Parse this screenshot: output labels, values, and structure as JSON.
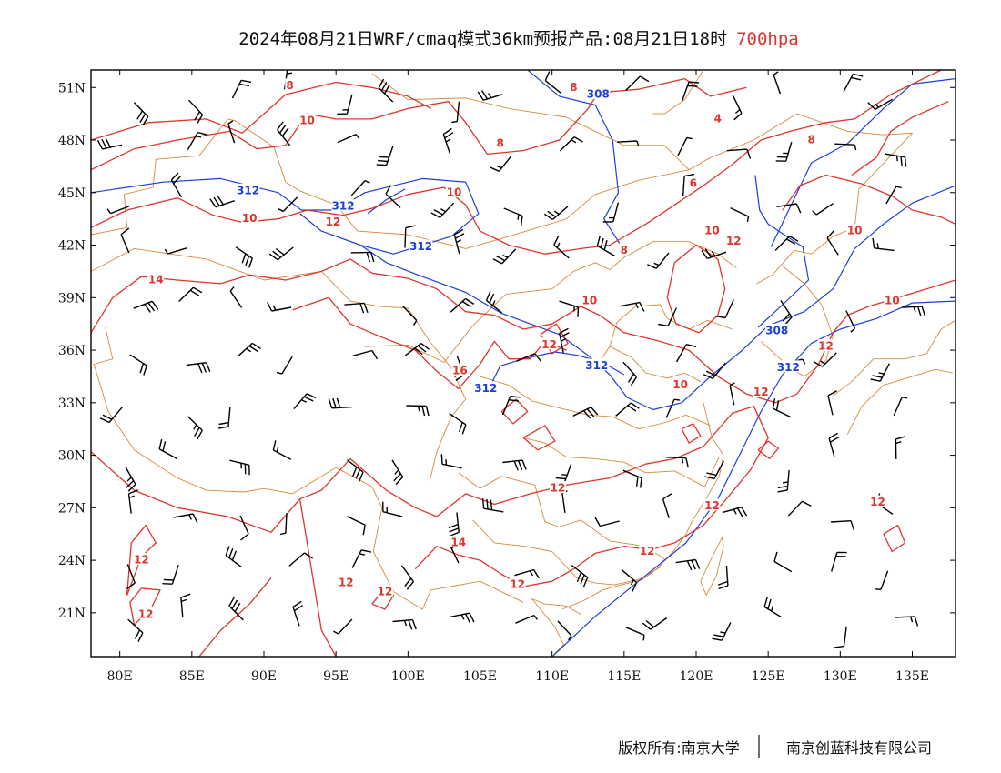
{
  "title": {
    "main": "2024年08月21日WRF/cmaq模式36km预报产品:08月21日18时",
    "level": "700hpa",
    "level_color": "#e0342c"
  },
  "map": {
    "lon_range": [
      78,
      138
    ],
    "lat_range": [
      18.5,
      52
    ],
    "lat_ticks": [
      51,
      48,
      45,
      42,
      39,
      36,
      33,
      30,
      27,
      24,
      21
    ],
    "lat_labels": [
      "51N",
      "48N",
      "45N",
      "42N",
      "39N",
      "36N",
      "33N",
      "30N",
      "27N",
      "24N",
      "21N"
    ],
    "lon_ticks": [
      80,
      85,
      90,
      95,
      100,
      105,
      110,
      115,
      120,
      125,
      130,
      135
    ],
    "lon_labels": [
      "80E",
      "85E",
      "90E",
      "95E",
      "100E",
      "105E",
      "110E",
      "115E",
      "120E",
      "125E",
      "130E",
      "135E"
    ],
    "colors": {
      "temperature_contour": "#e0342c",
      "height_contour": "#1c3fd8",
      "boundary": "#d8893a",
      "wind_barb": "#000000",
      "frame": "#000000"
    },
    "temperature_labels": [
      {
        "text": "8",
        "lon": 91.8,
        "lat": 51.1
      },
      {
        "text": "10",
        "lon": 93.0,
        "lat": 49.1
      },
      {
        "text": "8",
        "lon": 106.4,
        "lat": 47.8
      },
      {
        "text": "8",
        "lon": 111.5,
        "lat": 51.0
      },
      {
        "text": "4",
        "lon": 121.5,
        "lat": 49.2
      },
      {
        "text": "8",
        "lon": 128.0,
        "lat": 48.0
      },
      {
        "text": "6",
        "lon": 119.8,
        "lat": 45.5
      },
      {
        "text": "10",
        "lon": 103.2,
        "lat": 45.0
      },
      {
        "text": "10",
        "lon": 89.0,
        "lat": 43.5
      },
      {
        "text": "12",
        "lon": 94.8,
        "lat": 43.3
      },
      {
        "text": "14",
        "lon": 82.5,
        "lat": 40.0
      },
      {
        "text": "8",
        "lon": 115.0,
        "lat": 41.7
      },
      {
        "text": "10",
        "lon": 121.1,
        "lat": 42.8
      },
      {
        "text": "12",
        "lon": 122.6,
        "lat": 42.2
      },
      {
        "text": "10",
        "lon": 131.0,
        "lat": 42.8
      },
      {
        "text": "10",
        "lon": 133.6,
        "lat": 38.8
      },
      {
        "text": "10",
        "lon": 112.6,
        "lat": 38.8
      },
      {
        "text": "12",
        "lon": 109.8,
        "lat": 36.3
      },
      {
        "text": "16",
        "lon": 103.6,
        "lat": 34.8
      },
      {
        "text": "10",
        "lon": 118.9,
        "lat": 34.0
      },
      {
        "text": "12",
        "lon": 129.0,
        "lat": 36.2
      },
      {
        "text": "12",
        "lon": 124.5,
        "lat": 33.6
      },
      {
        "text": "12",
        "lon": 110.4,
        "lat": 28.1
      },
      {
        "text": "12",
        "lon": 121.1,
        "lat": 27.1
      },
      {
        "text": "12",
        "lon": 132.6,
        "lat": 27.3
      },
      {
        "text": "14",
        "lon": 103.5,
        "lat": 25.0
      },
      {
        "text": "12",
        "lon": 116.6,
        "lat": 24.5
      },
      {
        "text": "12",
        "lon": 107.6,
        "lat": 22.6
      },
      {
        "text": "12",
        "lon": 81.5,
        "lat": 24.0
      },
      {
        "text": "12",
        "lon": 95.7,
        "lat": 22.7
      },
      {
        "text": "12",
        "lon": 98.4,
        "lat": 22.2
      },
      {
        "text": "12",
        "lon": 81.8,
        "lat": 20.9
      }
    ],
    "height_labels": [
      {
        "text": "308",
        "lon": 113.2,
        "lat": 50.6
      },
      {
        "text": "312",
        "lon": 88.9,
        "lat": 45.1
      },
      {
        "text": "312",
        "lon": 95.5,
        "lat": 44.2
      },
      {
        "text": "312",
        "lon": 100.9,
        "lat": 41.9
      },
      {
        "text": "308",
        "lon": 125.6,
        "lat": 37.1
      },
      {
        "text": "312",
        "lon": 113.1,
        "lat": 35.1
      },
      {
        "text": "312",
        "lon": 105.4,
        "lat": 33.8
      },
      {
        "text": "312",
        "lon": 126.4,
        "lat": 35.0
      }
    ]
  },
  "copyright": {
    "left": "版权所有:南京大学",
    "right": "南京创蓝科技有限公司"
  }
}
